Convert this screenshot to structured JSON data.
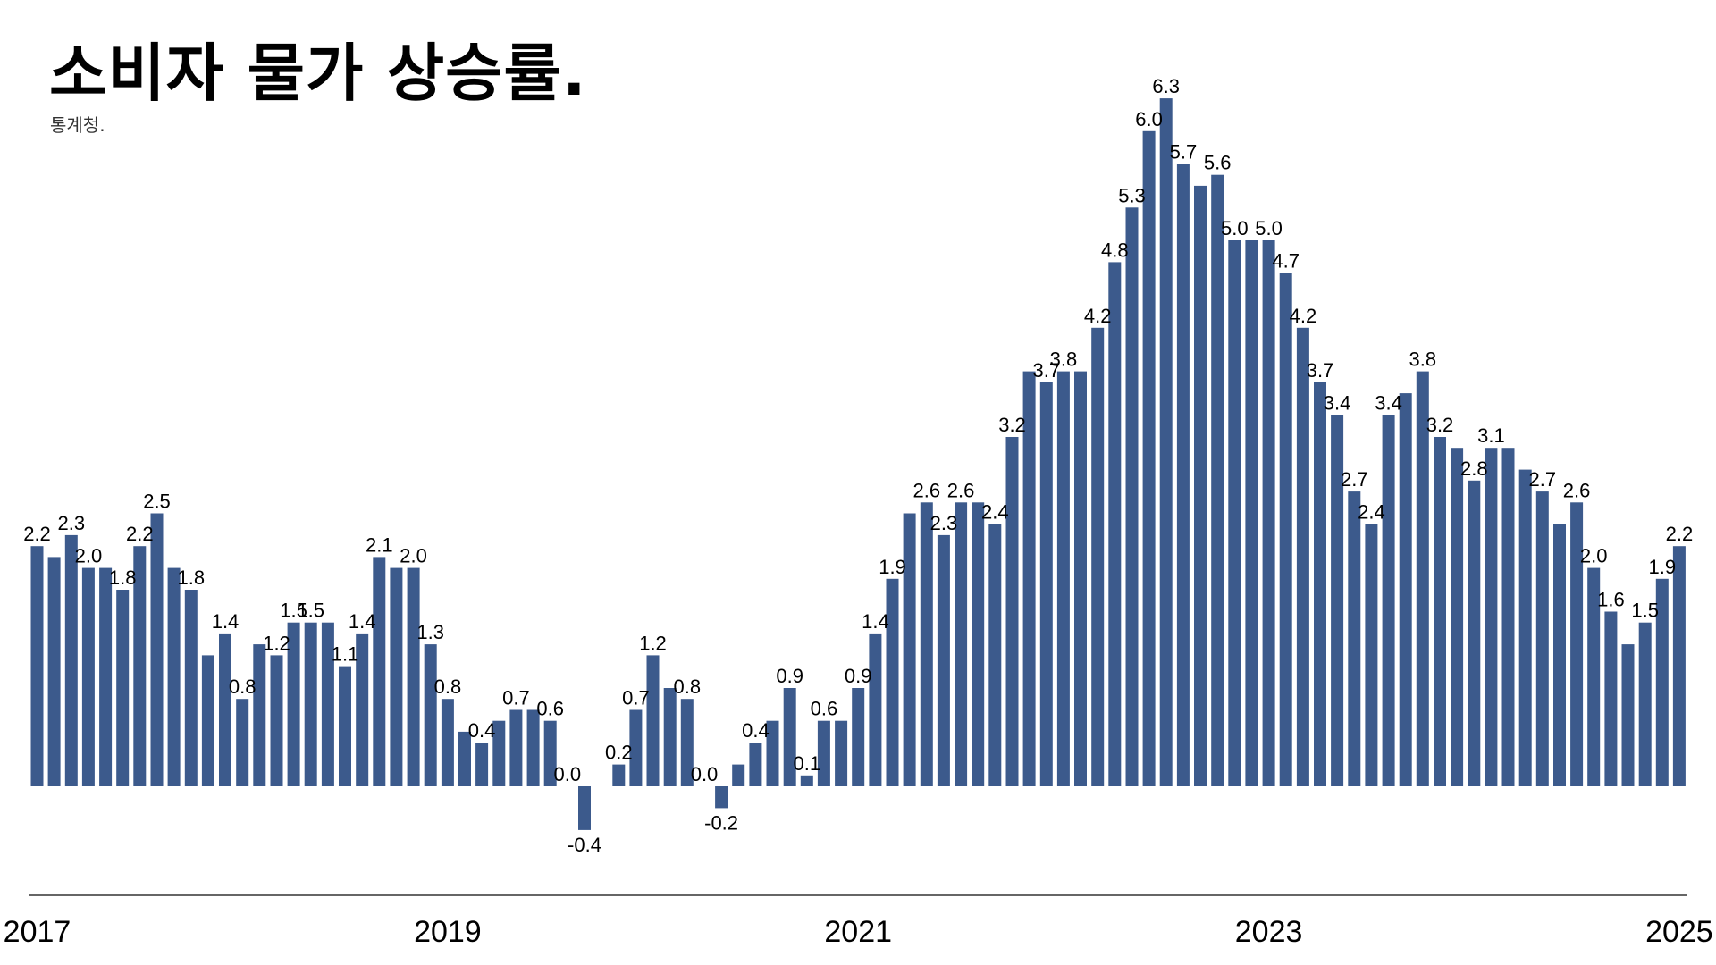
{
  "chart_data": {
    "type": "bar",
    "title": "소비자 물가 상승률.",
    "subtitle": "통계청.",
    "x_tick_labels": [
      "2017",
      "2019",
      "2021",
      "2023",
      "2025"
    ],
    "x_tick_month_index": [
      0,
      24,
      48,
      72,
      96
    ],
    "start": "2017-01",
    "bar_color": "#3c5a8c",
    "values": [
      2.2,
      2.1,
      2.3,
      2.0,
      2.0,
      1.8,
      2.2,
      2.5,
      2.0,
      1.8,
      1.2,
      1.4,
      0.8,
      1.3,
      1.2,
      1.5,
      1.5,
      1.5,
      1.1,
      1.4,
      2.1,
      2.0,
      2.0,
      1.3,
      0.8,
      0.5,
      0.4,
      0.6,
      0.7,
      0.7,
      0.6,
      0.0,
      -0.4,
      0.0,
      0.2,
      0.7,
      1.2,
      0.9,
      0.8,
      0.0,
      -0.2,
      0.2,
      0.4,
      0.6,
      0.9,
      0.1,
      0.6,
      0.6,
      0.9,
      1.4,
      1.9,
      2.5,
      2.6,
      2.3,
      2.6,
      2.6,
      2.4,
      3.2,
      3.8,
      3.7,
      3.8,
      3.8,
      4.2,
      4.8,
      5.3,
      6.0,
      6.3,
      5.7,
      5.5,
      5.6,
      5.0,
      5.0,
      5.0,
      4.7,
      4.2,
      3.7,
      3.4,
      2.7,
      2.4,
      3.4,
      3.6,
      3.8,
      3.2,
      3.1,
      2.8,
      3.1,
      3.1,
      2.9,
      2.7,
      2.4,
      2.6,
      2.0,
      1.6,
      1.3,
      1.5,
      1.9,
      2.2
    ],
    "labels": [
      "2.2",
      "",
      "2.3",
      "2.0",
      "",
      "1.8",
      "2.2",
      "2.5",
      "",
      "1.8",
      "",
      "1.4",
      "0.8",
      "",
      "1.2",
      "1.5",
      "1.5",
      "",
      "1.1",
      "1.4",
      "2.1",
      "",
      "2.0",
      "1.3",
      "0.8",
      "",
      "0.4",
      "",
      "0.7",
      "",
      "0.6",
      "0.0",
      "-0.4",
      "",
      "0.2",
      "0.7",
      "1.2",
      "",
      "0.8",
      "0.0",
      "-0.2",
      "",
      "0.4",
      "",
      "0.9",
      "0.1",
      "0.6",
      "",
      "0.9",
      "1.4",
      "1.9",
      "",
      "2.6",
      "2.3",
      "2.6",
      "",
      "2.4",
      "3.2",
      "",
      "3.7",
      "3.8",
      "",
      "4.2",
      "4.8",
      "5.3",
      "6.0",
      "6.3",
      "5.7",
      "",
      "5.6",
      "5.0",
      "",
      "5.0",
      "4.7",
      "4.2",
      "3.7",
      "3.4",
      "2.7",
      "2.4",
      "3.4",
      "",
      "3.8",
      "3.2",
      "",
      "2.8",
      "3.1",
      "",
      "",
      "2.7",
      "",
      "2.6",
      "2.0",
      "1.6",
      "",
      "1.5",
      "1.9",
      "2.2"
    ],
    "ylim": [
      -0.6,
      6.6
    ],
    "grid": false,
    "legend": "none"
  }
}
